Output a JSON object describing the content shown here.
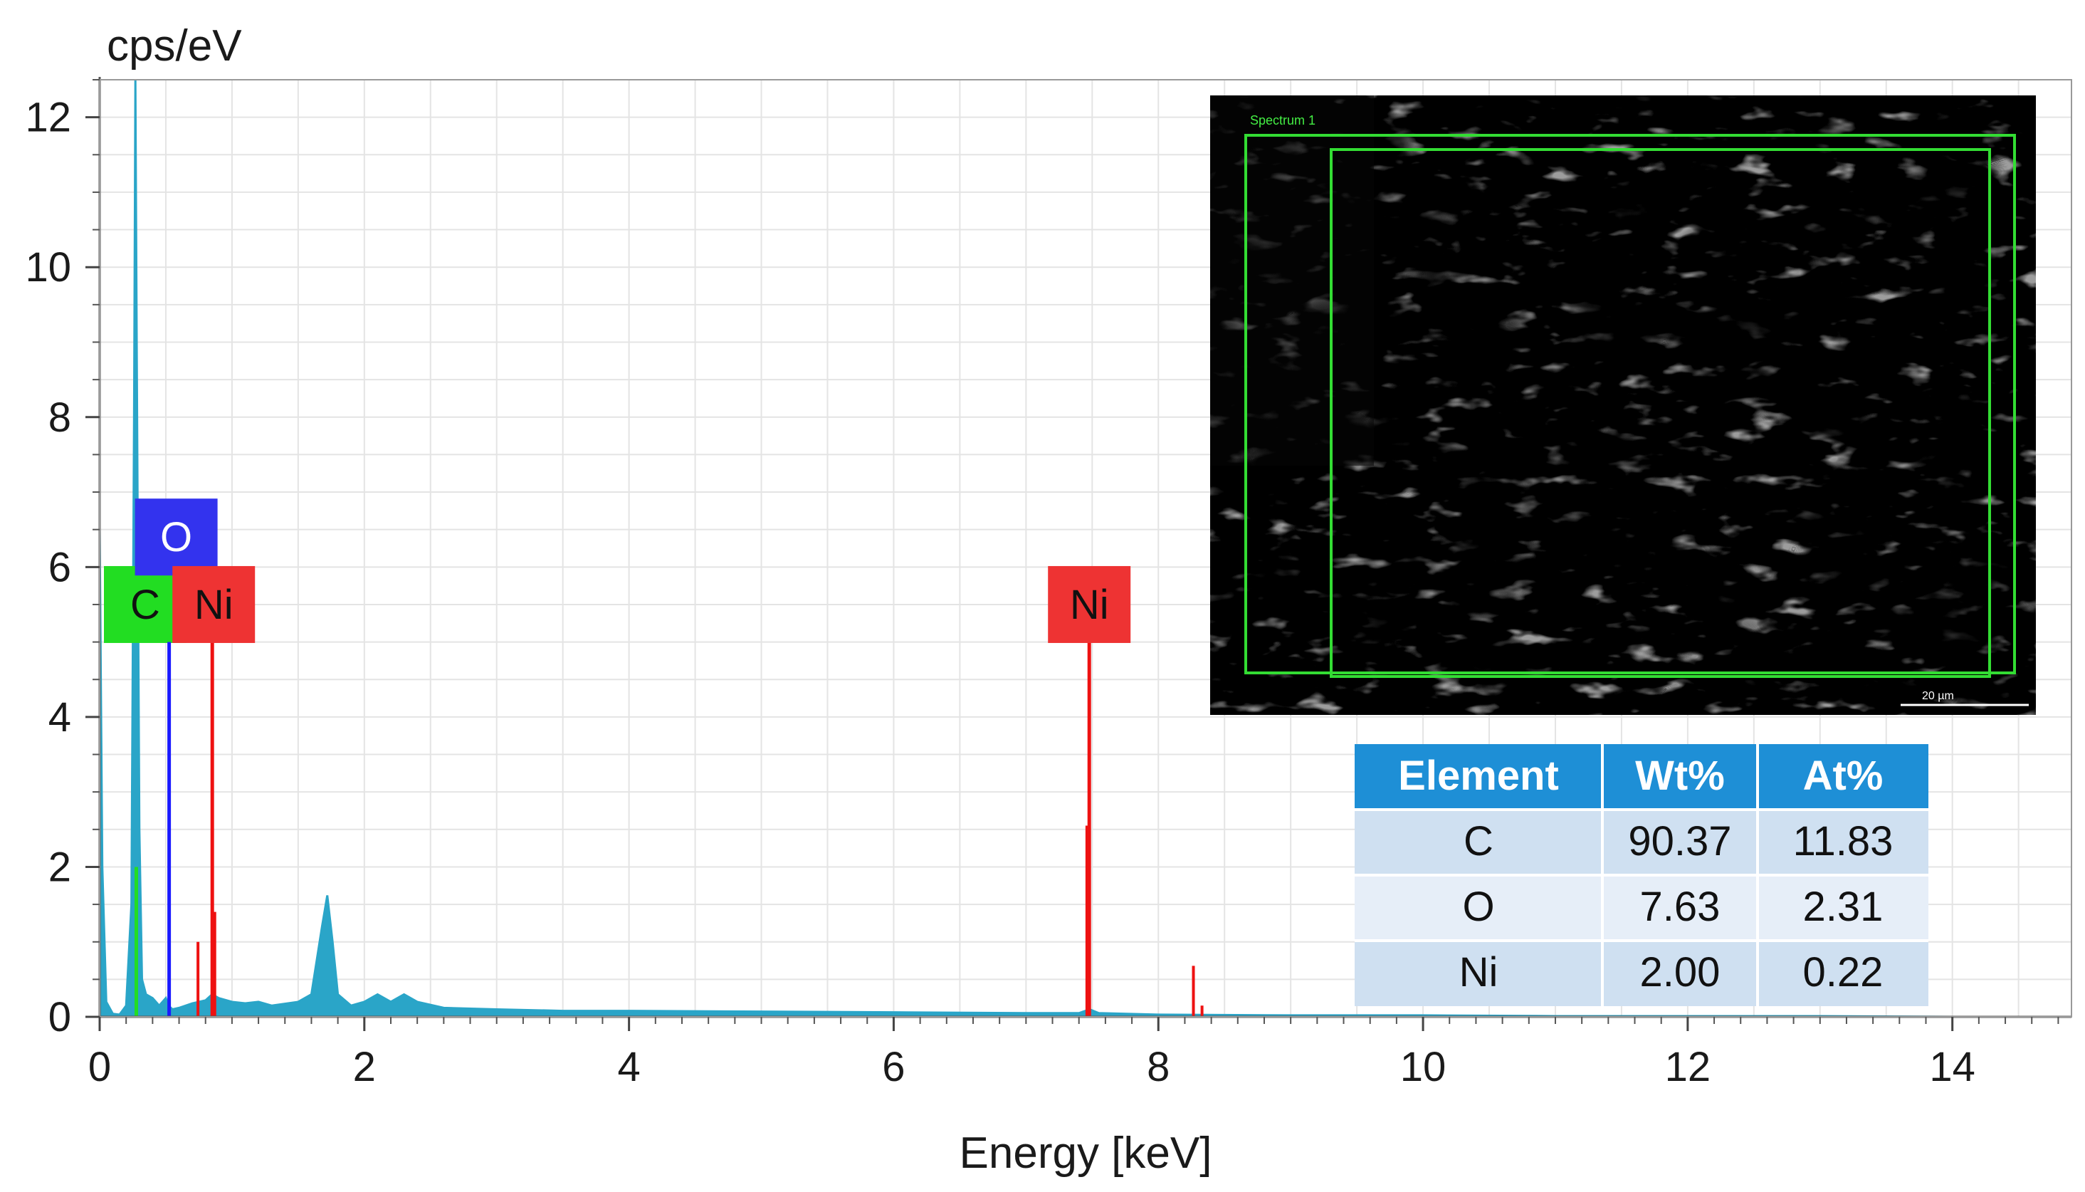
{
  "chart_data": {
    "type": "line",
    "title": "",
    "xlabel": "Energy [keV]",
    "ylabel": "cps/eV",
    "xlim": [
      0,
      15
    ],
    "ylim": [
      0,
      12.5
    ],
    "x_ticks": [
      0,
      2,
      4,
      6,
      8,
      10,
      12,
      14
    ],
    "y_ticks": [
      0,
      2,
      4,
      6,
      8,
      10,
      12
    ],
    "grid": true,
    "spectrum_color": "#2aa5c8",
    "series": [
      {
        "x": [
          0.0,
          0.02,
          0.05,
          0.1,
          0.15,
          0.2,
          0.24,
          0.26,
          0.27,
          0.28,
          0.3,
          0.32,
          0.35,
          0.4,
          0.45,
          0.5,
          0.52,
          0.55,
          0.6,
          0.7,
          0.8,
          0.85,
          0.9,
          1.0,
          1.1,
          1.2,
          1.3,
          1.5,
          1.6,
          1.68,
          1.72,
          1.76,
          1.8,
          1.9,
          2.0,
          2.1,
          2.2,
          2.3,
          2.4,
          2.6,
          3.0,
          3.5,
          4.0,
          5.0,
          6.0,
          7.0,
          7.4,
          7.48,
          7.55,
          8.0,
          9.0,
          10.0,
          11.0,
          12.0,
          13.0,
          14.0,
          14.6
        ],
        "y": [
          6.5,
          2.0,
          0.2,
          0.04,
          0.03,
          0.15,
          1.5,
          8.0,
          12.5,
          9.0,
          2.5,
          0.5,
          0.3,
          0.25,
          0.15,
          0.25,
          0.15,
          0.1,
          0.12,
          0.18,
          0.22,
          0.3,
          0.25,
          0.2,
          0.18,
          0.2,
          0.15,
          0.2,
          0.3,
          1.2,
          1.62,
          1.0,
          0.3,
          0.15,
          0.2,
          0.3,
          0.2,
          0.3,
          0.2,
          0.12,
          0.1,
          0.08,
          0.08,
          0.07,
          0.06,
          0.05,
          0.05,
          0.1,
          0.05,
          0.03,
          0.02,
          0.02,
          0.01,
          0.01,
          0.01,
          0.0,
          0.0
        ]
      }
    ],
    "element_markers": [
      {
        "element": "C",
        "energy": 0.277,
        "height": 2.0,
        "line_color": "#22dd22",
        "tag_color": "#22dd22",
        "tag_y": 5.5
      },
      {
        "element": "O",
        "energy": 0.525,
        "height": 5.0,
        "line_color": "#1a1aff",
        "tag_color": "#3333ee",
        "tag_y": 6.4
      },
      {
        "element": "Ni",
        "energy": 0.851,
        "height": 5.0,
        "line_color": "#ee1111",
        "tag_color": "#ee3333",
        "tag_y": 5.5
      },
      {
        "element": "Ni",
        "energy": 7.478,
        "height": 5.0,
        "line_color": "#ee1111",
        "tag_color": "#ee3333",
        "tag_y": 5.5
      }
    ],
    "minor_peaks": [
      {
        "energy": 0.743,
        "height": 1.0,
        "color": "#ee1111"
      },
      {
        "energy": 0.87,
        "height": 1.4,
        "color": "#ee1111"
      },
      {
        "energy": 7.46,
        "height": 2.55,
        "color": "#ee1111"
      },
      {
        "energy": 8.265,
        "height": 0.68,
        "color": "#ee1111"
      },
      {
        "energy": 8.33,
        "height": 0.15,
        "color": "#ee1111"
      }
    ]
  },
  "composition_table": {
    "header_color": "#1e8fd6",
    "headers": [
      "Element",
      "Wt%",
      "At%"
    ],
    "rows": [
      {
        "element": "C",
        "wt": "90.37",
        "at": "11.83"
      },
      {
        "element": "O",
        "wt": "7.63",
        "at": "2.31"
      },
      {
        "element": "Ni",
        "wt": "2.00",
        "at": "0.22"
      }
    ]
  },
  "sem_inset": {
    "label": "Spectrum 1",
    "scale_bar": "20 µm"
  }
}
